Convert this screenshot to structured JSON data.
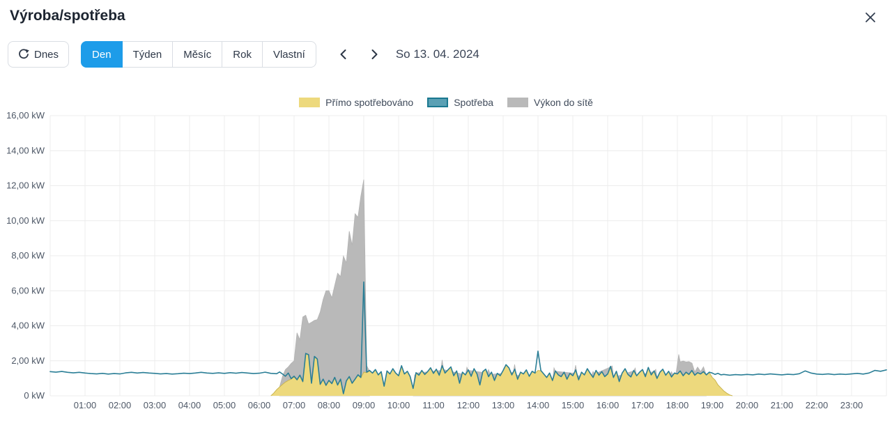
{
  "header": {
    "title": "Výroba/spotřeba",
    "close_icon": "close-x"
  },
  "toolbar": {
    "today_label": "Dnes",
    "range_buttons": [
      "Den",
      "Týden",
      "Měsíc",
      "Rok",
      "Vlastní"
    ],
    "active_range": "Den",
    "date_label": "So 13. 04. 2024"
  },
  "colors": {
    "accent_blue": "#1d9ce9",
    "gridline": "#ececec",
    "axis_text": "#4d5766",
    "icon_dark": "#2e3848"
  },
  "chart_data": {
    "type": "area",
    "unit": "kW",
    "grid": "on",
    "legend_position": "top-center",
    "x_axis": {
      "min_hour": 0,
      "max_hour": 24,
      "tick_labels": [
        "01:00",
        "02:00",
        "03:00",
        "04:00",
        "05:00",
        "06:00",
        "07:00",
        "08:00",
        "09:00",
        "10:00",
        "11:00",
        "12:00",
        "13:00",
        "14:00",
        "15:00",
        "16:00",
        "17:00",
        "18:00",
        "19:00",
        "20:00",
        "21:00",
        "22:00",
        "23:00"
      ]
    },
    "y_axis": {
      "min": 0,
      "max": 16,
      "tick_step": 2,
      "tick_labels": [
        "0 kW",
        "2,00 kW",
        "4,00 kW",
        "6,00 kW",
        "8,00 kW",
        "10,00 kW",
        "12,00 kW",
        "14,00 kW",
        "16,00 kW"
      ]
    },
    "series": [
      {
        "name": "Přímo spotřebováno",
        "type": "area",
        "fill": "#edd97d",
        "stroke": "#c9b44f",
        "segments": [
          {
            "t0": 6.333,
            "dt_min": 5,
            "values": [
              0,
              0.15,
              0.35,
              0.5,
              0.65,
              0.78,
              0.88,
              0.95,
              1.08,
              0.9,
              1.15,
              0.8,
              2.4,
              2.33,
              0.7,
              2.23,
              2.08,
              0.64,
              0.93,
              0.58,
              0.86,
              0.68,
              1.02,
              0.6,
              0.93,
              0.1,
              0.83,
              1.08,
              0.7,
              0.93,
              1.18,
              1.03,
              1.35,
              1.32,
              1.42,
              1.28,
              1.48,
              1.18,
              1.36,
              0.53,
              1.4,
              1.23,
              1.52,
              1.28,
              1.13,
              1.7,
              1.23,
              1.38,
              1.08,
              0.4,
              1.3,
              1.16,
              1.43,
              1.2,
              1.36,
              1.58,
              1.26,
              1.5,
              1.16,
              1.7,
              1.28,
              1.46,
              1.63,
              1.13,
              1.4,
              0.7,
              1.33,
              1.18,
              1.46,
              1.1,
              1.53,
              1.23,
              0.6,
              1.36,
              1.5,
              1.08,
              1.33,
              0.86,
              1.26,
              1.13,
              1.43,
              1.76,
              1.58,
              1.18,
              1.5,
              0.93,
              1.33,
              1.23,
              1.46,
              1.1,
              1.38,
              1.28,
              1.45,
              1.43,
              1.23,
              1.03,
              1.28,
              0.86,
              1.4,
              1.18,
              1.08,
              1.33,
              0.93,
              1.26,
              1.13,
              1.46,
              0.9,
              1.33,
              1.18,
              1.53,
              1.26,
              1.03,
              1.43,
              1.16,
              1.36,
              1.08,
              1.23,
              1.66,
              1.03,
              1.38,
              0.8,
              1.28,
              1.53,
              1.2,
              1.06,
              1.43,
              1.13,
              1.33,
              1.48,
              1.08,
              1.6,
              1.18,
              1.4,
              0.98,
              1.33,
              1.5,
              1.16,
              1.38,
              1.06,
              1.28,
              1.23,
              1.4,
              1.13,
              1.33,
              1.2,
              1.43,
              1.16,
              1.3,
              1.23,
              1.36,
              1.18,
              1.33,
              1.05,
              0.9,
              0.62,
              0.45,
              0.28,
              0.15,
              0.05,
              0
            ]
          }
        ]
      },
      {
        "name": "Spotřeba",
        "type": "line",
        "stroke": "#2a7e96",
        "legend_fill": "#5aa0b4",
        "legend_border": "#1a7890",
        "segments": [
          {
            "t0": 0,
            "dt_min": 10,
            "values": [
              1.38,
              1.35,
              1.39,
              1.34,
              1.31,
              1.34,
              1.3,
              1.27,
              1.25,
              1.28,
              1.24,
              1.27,
              1.25,
              1.31,
              1.34,
              1.3,
              1.33,
              1.3,
              1.28,
              1.25,
              1.27,
              1.24,
              1.26,
              1.29,
              1.27,
              1.3,
              1.34,
              1.3,
              1.28,
              1.31,
              1.28,
              1.32,
              1.29,
              1.33,
              1.3,
              1.27,
              1.29,
              1.35,
              1.28,
              1.26
            ]
          },
          {
            "t0": 6.583,
            "dt_min": 5,
            "values": [
              1.36,
              1.25,
              1.12,
              1.3,
              0.98,
              1.12,
              0.92,
              1.18,
              0.82,
              2.42,
              2.35,
              0.72,
              2.25,
              2.1,
              0.66,
              0.95,
              0.6,
              0.88,
              0.7,
              1.05,
              0.62,
              0.95,
              0.12,
              0.85,
              1.1,
              0.72,
              0.95,
              1.2,
              1.05,
              6.5,
              1.35,
              1.45,
              1.3,
              1.5,
              1.2,
              1.38,
              0.55,
              1.42,
              1.25,
              1.55,
              1.3,
              1.15,
              1.72,
              1.25,
              1.4,
              1.1,
              0.42,
              1.32,
              1.18,
              1.45,
              1.22,
              1.38,
              1.6,
              1.28,
              1.52,
              1.18,
              1.72,
              1.3,
              1.48,
              1.65,
              1.15,
              1.42,
              0.72,
              1.35,
              1.2,
              1.48,
              1.12,
              1.55,
              1.25,
              0.62,
              1.38,
              1.52,
              1.1,
              1.35,
              0.88,
              1.28,
              1.15,
              1.45,
              1.78,
              1.6,
              1.2,
              1.52,
              0.95,
              1.35,
              1.25,
              1.48,
              1.12,
              1.4,
              1.3,
              2.55,
              1.45,
              1.25,
              1.05,
              1.3,
              0.88,
              1.42,
              1.2,
              1.1,
              1.35,
              0.95,
              1.28,
              1.15,
              1.48,
              0.92,
              1.35,
              1.2,
              1.55,
              1.28,
              1.05,
              1.45,
              1.18,
              1.38,
              1.1,
              1.25,
              1.68,
              1.05,
              1.4,
              0.82,
              1.3,
              1.55,
              1.22,
              1.08,
              1.45,
              1.15,
              1.35,
              1.5,
              1.1,
              1.62,
              1.2,
              1.42,
              1.0,
              1.35,
              1.52,
              1.18,
              1.4,
              1.08,
              1.3,
              1.25,
              1.42,
              1.15,
              1.35,
              1.22,
              1.45,
              1.18,
              1.32,
              1.25,
              1.38,
              1.2,
              1.35,
              1.3,
              1.22,
              1.28,
              1.2
            ]
          },
          {
            "t0": 19.333,
            "dt_min": 10,
            "values": [
              1.22,
              1.18,
              1.21,
              1.19,
              1.22,
              1.2,
              1.24,
              1.21,
              1.25,
              1.22,
              1.2,
              1.23,
              1.21,
              1.26,
              1.42,
              1.3,
              1.24,
              1.22,
              1.25,
              1.21,
              1.24,
              1.22,
              1.25,
              1.28,
              1.24,
              1.3,
              1.45,
              1.4,
              1.48
            ]
          }
        ]
      },
      {
        "name": "Výkon do sítě",
        "type": "area",
        "stacked_on": "Přímo spotřebováno",
        "fill": "#b9b9b9",
        "stroke": "#b3b3b3",
        "segments": [
          {
            "t0": 6.583,
            "dt_min": 5,
            "values": [
              0,
              0.45,
              0.72,
              0.77,
              0.9,
              0.92,
              2.7,
              2.05,
              3.7,
              2.2,
              1.78,
              3.5,
              2.08,
              2.27,
              4.15,
              4.58,
              5.42,
              5.15,
              4.92,
              5.28,
              6.4,
              5.88,
              7.88,
              6.77,
              8.32,
              7.9,
              9.47,
              9.02,
              10.37,
              11.0,
              0.4,
              0
            ]
          },
          {
            "points": [
              [
                10.42,
                0
              ],
              [
                10.46,
                0.3
              ],
              [
                10.5,
                0
              ],
              [
                11.21,
                0
              ],
              [
                11.25,
                0.35
              ],
              [
                11.29,
                0
              ],
              [
                11.92,
                0
              ],
              [
                11.96,
                0.3
              ],
              [
                12.0,
                0
              ],
              [
                12.54,
                0
              ],
              [
                12.58,
                0.4
              ],
              [
                12.63,
                0
              ],
              [
                13.29,
                0
              ],
              [
                13.33,
                0.3
              ],
              [
                13.38,
                0
              ],
              [
                14.42,
                0
              ],
              [
                14.46,
                0.45
              ],
              [
                14.5,
                0
              ],
              [
                15.04,
                0
              ],
              [
                15.08,
                0.3
              ],
              [
                15.13,
                0
              ],
              [
                15.54,
                0
              ],
              [
                15.58,
                0.35
              ],
              [
                15.63,
                0
              ],
              [
                16.08,
                0
              ],
              [
                16.13,
                0.4
              ],
              [
                16.17,
                0
              ],
              [
                16.75,
                0
              ],
              [
                16.79,
                0.3
              ],
              [
                16.83,
                0
              ],
              [
                17.33,
                0
              ],
              [
                17.38,
                0.35
              ],
              [
                17.42,
                0
              ],
              [
                17.79,
                0
              ],
              [
                17.83,
                0.3
              ],
              [
                17.88,
                0
              ],
              [
                17.96,
                0
              ],
              [
                18.04,
                1.05
              ],
              [
                18.08,
                0.55
              ],
              [
                18.17,
                0.85
              ],
              [
                18.25,
                0.6
              ],
              [
                18.33,
                0.75
              ],
              [
                18.42,
                0.45
              ],
              [
                18.5,
                0.2
              ],
              [
                18.58,
                0.35
              ],
              [
                18.67,
                0.15
              ],
              [
                18.75,
                0.3
              ],
              [
                18.83,
                0
              ]
            ]
          }
        ]
      }
    ]
  }
}
